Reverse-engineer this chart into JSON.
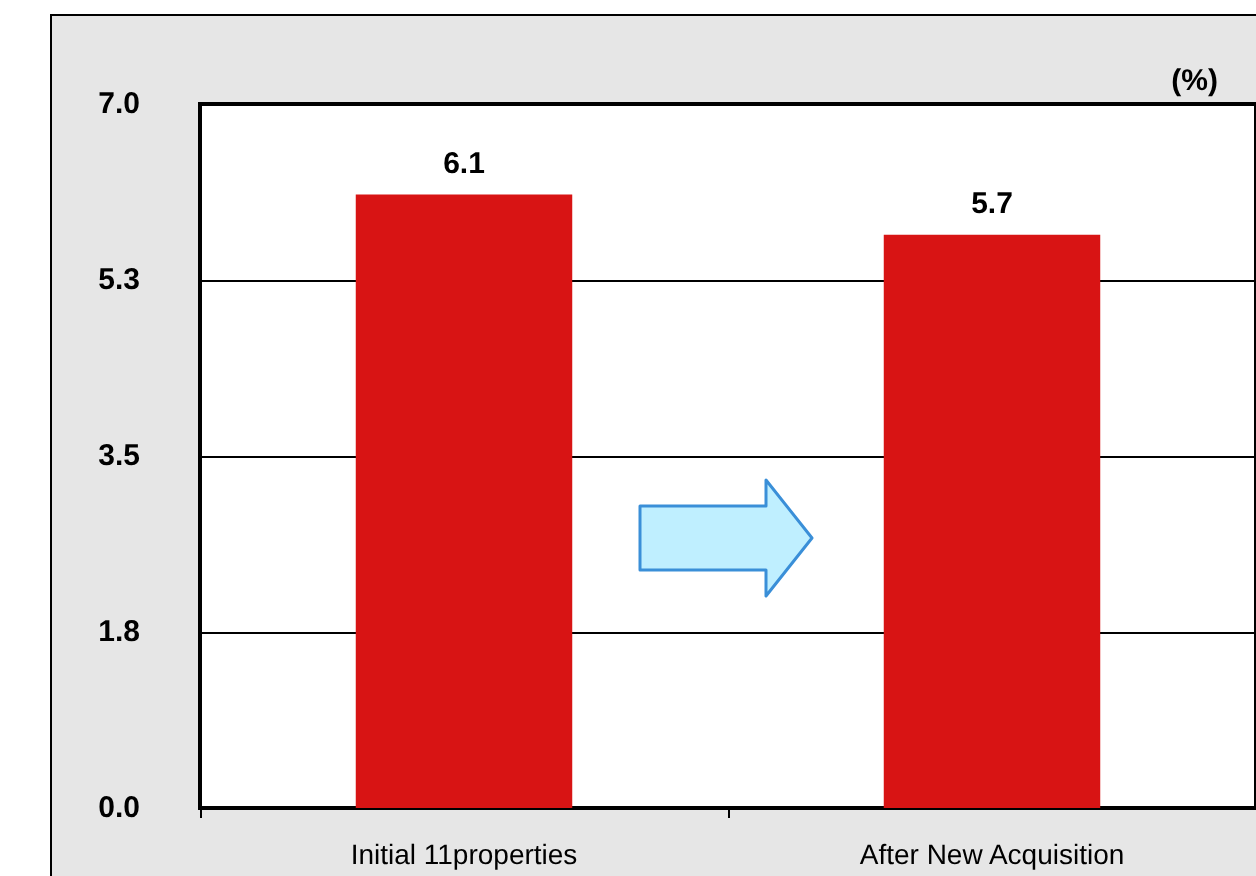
{
  "chart_data": {
    "type": "bar",
    "ylabel": "(%)",
    "categories": [
      "Initial 11properties",
      "After New Acquisition"
    ],
    "values": [
      6.1,
      5.7
    ],
    "color": "#d81414",
    "ylim": [
      0,
      7
    ],
    "yticks": [
      {
        "value": 0,
        "label": "0.0"
      },
      {
        "value": 1.75,
        "label": "1.8"
      },
      {
        "value": 3.5,
        "label": "3.5"
      },
      {
        "value": 5.25,
        "label": "5.3"
      },
      {
        "value": 7,
        "label": "7.0"
      }
    ],
    "grid": "y",
    "data_labels": true
  }
}
